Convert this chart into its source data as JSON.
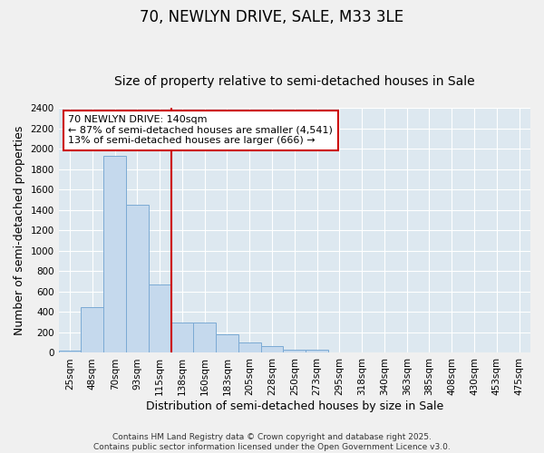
{
  "title": "70, NEWLYN DRIVE, SALE, M33 3LE",
  "subtitle": "Size of property relative to semi-detached houses in Sale",
  "xlabel": "Distribution of semi-detached houses by size in Sale",
  "ylabel": "Number of semi-detached properties",
  "categories": [
    "25sqm",
    "48sqm",
    "70sqm",
    "93sqm",
    "115sqm",
    "138sqm",
    "160sqm",
    "183sqm",
    "205sqm",
    "228sqm",
    "250sqm",
    "273sqm",
    "295sqm",
    "318sqm",
    "340sqm",
    "363sqm",
    "385sqm",
    "408sqm",
    "430sqm",
    "453sqm",
    "475sqm"
  ],
  "values": [
    20,
    450,
    1930,
    1450,
    670,
    300,
    300,
    180,
    100,
    65,
    35,
    30,
    0,
    0,
    0,
    0,
    0,
    0,
    0,
    0,
    0
  ],
  "bar_color": "#c5d9ed",
  "bar_edge_color": "#7baad4",
  "vline_color": "#cc0000",
  "annotation_box_edge_color": "#cc0000",
  "annotation_text_line1": "70 NEWLYN DRIVE: 140sqm",
  "annotation_text_line2": "← 87% of semi-detached houses are smaller (4,541)",
  "annotation_text_line3": "13% of semi-detached houses are larger (666) →",
  "vline_index": 5,
  "ylim": [
    0,
    2400
  ],
  "yticks": [
    0,
    200,
    400,
    600,
    800,
    1000,
    1200,
    1400,
    1600,
    1800,
    2000,
    2200,
    2400
  ],
  "background_color": "#dde8f0",
  "grid_color": "#ffffff",
  "fig_background": "#f0f0f0",
  "footer": "Contains HM Land Registry data © Crown copyright and database right 2025.\nContains public sector information licensed under the Open Government Licence v3.0.",
  "title_fontsize": 12,
  "subtitle_fontsize": 10,
  "axis_label_fontsize": 9,
  "tick_fontsize": 7.5,
  "footer_fontsize": 6.5,
  "annotation_fontsize": 8
}
